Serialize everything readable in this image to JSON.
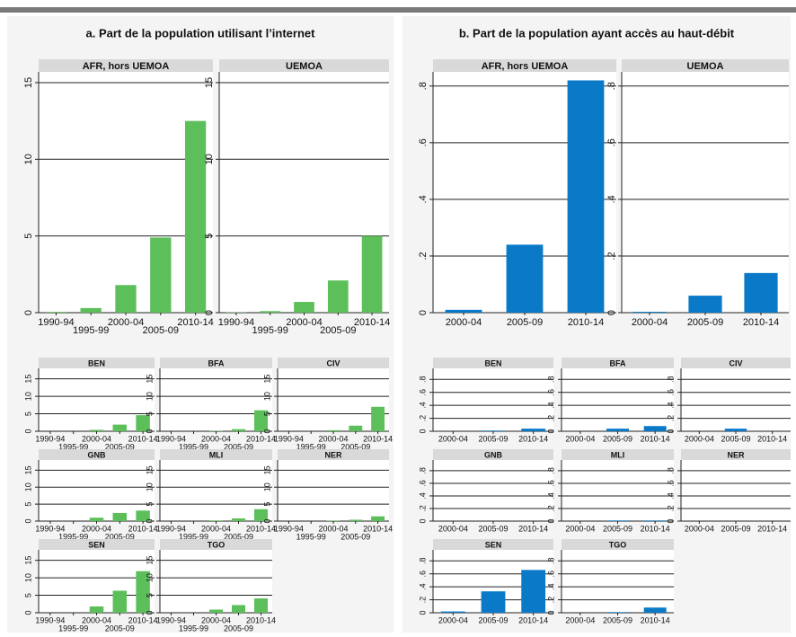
{
  "panels": [
    "a. Part de la population utilisant l’internet",
    "b. Part de la population ayant accès au haut-débit"
  ],
  "chart_data": [
    {
      "type": "bar",
      "title": "AFR, hors UEMOA",
      "categories": [
        "1990-94",
        "1995-99",
        "2000-04",
        "2005-09",
        "2010-14"
      ],
      "values": [
        0.05,
        0.3,
        1.8,
        4.9,
        12.5
      ],
      "color": "#5cbf5a",
      "ylim": [
        0,
        15.7
      ],
      "yticks": [
        0,
        5,
        10,
        15
      ],
      "grid": true
    },
    {
      "type": "bar",
      "title": "UEMOA",
      "categories": [
        "1990-94",
        "1995-99",
        "2000-04",
        "2005-09",
        "2010-14"
      ],
      "values": [
        0.02,
        0.1,
        0.7,
        2.1,
        5.0
      ],
      "color": "#5cbf5a",
      "ylim": [
        0,
        15.7
      ],
      "yticks": [
        0,
        5,
        10,
        15
      ],
      "grid": true
    },
    {
      "type": "bar",
      "title": "BEN",
      "categories": [
        "1990-94",
        "1995-99",
        "2000-04",
        "2005-09",
        "2010-14"
      ],
      "values": [
        0,
        0,
        0.4,
        1.9,
        4.6
      ],
      "color": "#5cbf5a",
      "ylim": [
        0,
        18
      ],
      "yticks": [
        0,
        5,
        10,
        15
      ],
      "grid": true
    },
    {
      "type": "bar",
      "title": "BFA",
      "categories": [
        "1990-94",
        "1995-99",
        "2000-04",
        "2005-09",
        "2010-14"
      ],
      "values": [
        0,
        0,
        0.1,
        0.6,
        6.0
      ],
      "color": "#5cbf5a",
      "ylim": [
        0,
        18
      ],
      "yticks": [
        0,
        5,
        10,
        15
      ],
      "grid": true
    },
    {
      "type": "bar",
      "title": "CIV",
      "categories": [
        "1990-94",
        "1995-99",
        "2000-04",
        "2005-09",
        "2010-14"
      ],
      "values": [
        0,
        0,
        0.3,
        1.6,
        7.0
      ],
      "color": "#5cbf5a",
      "ylim": [
        0,
        18
      ],
      "yticks": [
        0,
        5,
        10,
        15
      ],
      "grid": true
    },
    {
      "type": "bar",
      "title": "GNB",
      "categories": [
        "1990-94",
        "1995-99",
        "2000-04",
        "2005-09",
        "2010-14"
      ],
      "values": [
        0,
        0,
        1.0,
        2.4,
        3.1
      ],
      "color": "#5cbf5a",
      "ylim": [
        0,
        18
      ],
      "yticks": [
        0,
        5,
        10,
        15
      ],
      "grid": true
    },
    {
      "type": "bar",
      "title": "MLI",
      "categories": [
        "1990-94",
        "1995-99",
        "2000-04",
        "2005-09",
        "2010-14"
      ],
      "values": [
        0,
        0,
        0.2,
        0.8,
        3.5
      ],
      "color": "#5cbf5a",
      "ylim": [
        0,
        18
      ],
      "yticks": [
        0,
        5,
        10,
        15
      ],
      "grid": true
    },
    {
      "type": "bar",
      "title": "NER",
      "categories": [
        "1990-94",
        "1995-99",
        "2000-04",
        "2005-09",
        "2010-14"
      ],
      "values": [
        0,
        0,
        0.1,
        0.4,
        1.4
      ],
      "color": "#5cbf5a",
      "ylim": [
        0,
        18
      ],
      "yticks": [
        0,
        5,
        10,
        15
      ],
      "grid": true
    },
    {
      "type": "bar",
      "title": "SEN",
      "categories": [
        "1990-94",
        "1995-99",
        "2000-04",
        "2005-09",
        "2010-14"
      ],
      "values": [
        0,
        0,
        1.8,
        6.3,
        11.9
      ],
      "color": "#5cbf5a",
      "ylim": [
        0,
        18
      ],
      "yticks": [
        0,
        5,
        10,
        15
      ],
      "grid": true
    },
    {
      "type": "bar",
      "title": "TGO",
      "categories": [
        "1990-94",
        "1995-99",
        "2000-04",
        "2005-09",
        "2010-14"
      ],
      "values": [
        0,
        0,
        0.9,
        2.2,
        4.1
      ],
      "color": "#5cbf5a",
      "ylim": [
        0,
        18
      ],
      "yticks": [
        0,
        5,
        10,
        15
      ],
      "grid": true
    },
    {
      "type": "bar",
      "title": "AFR, hors UEMOA",
      "categories": [
        "2000-04",
        "2005-09",
        "2010-14"
      ],
      "values": [
        0.01,
        0.24,
        0.82
      ],
      "color": "#0a79c8",
      "ylim": [
        0,
        0.85
      ],
      "yticks": [
        0,
        {
          "value": 0.2,
          "label": ".2"
        },
        {
          "value": 0.4,
          "label": ".4"
        },
        {
          "value": 0.6,
          "label": ".6"
        },
        {
          "value": 0.8,
          "label": ".8"
        }
      ],
      "grid": true
    },
    {
      "type": "bar",
      "title": "UEMOA",
      "categories": [
        "2000-04",
        "2005-09",
        "2010-14"
      ],
      "values": [
        0.003,
        0.06,
        0.14
      ],
      "color": "#0a79c8",
      "ylim": [
        0,
        0.85
      ],
      "yticks": [
        0,
        {
          "value": 0.2,
          "label": ".2"
        },
        {
          "value": 0.4,
          "label": ".4"
        },
        {
          "value": 0.6,
          "label": ".6"
        },
        {
          "value": 0.8,
          "label": ".8"
        }
      ],
      "grid": true
    },
    {
      "type": "bar",
      "title": "BEN",
      "categories": [
        "2000-04",
        "2005-09",
        "2010-14"
      ],
      "values": [
        0,
        0.01,
        0.04
      ],
      "color": "#0a79c8",
      "ylim": [
        0,
        0.97
      ],
      "yticks": [
        0,
        {
          "value": 0.2,
          "label": ".2"
        },
        {
          "value": 0.4,
          "label": ".4"
        },
        {
          "value": 0.6,
          "label": ".6"
        },
        {
          "value": 0.8,
          "label": ".8"
        }
      ],
      "grid": true
    },
    {
      "type": "bar",
      "title": "BFA",
      "categories": [
        "2000-04",
        "2005-09",
        "2010-14"
      ],
      "values": [
        0,
        0.04,
        0.08
      ],
      "color": "#0a79c8",
      "ylim": [
        0,
        0.97
      ],
      "yticks": [
        0,
        {
          "value": 0.2,
          "label": ".2"
        },
        {
          "value": 0.4,
          "label": ".4"
        },
        {
          "value": 0.6,
          "label": ".6"
        },
        {
          "value": 0.8,
          "label": ".8"
        }
      ],
      "grid": true
    },
    {
      "type": "bar",
      "title": "CIV",
      "categories": [
        "2000-04",
        "2005-09",
        "2010-14"
      ],
      "values": [
        0,
        0.04,
        0
      ],
      "color": "#0a79c8",
      "ylim": [
        0,
        0.97
      ],
      "yticks": [
        0,
        {
          "value": 0.2,
          "label": ".2"
        },
        {
          "value": 0.4,
          "label": ".4"
        },
        {
          "value": 0.6,
          "label": ".6"
        },
        {
          "value": 0.8,
          "label": ".8"
        }
      ],
      "grid": true
    },
    {
      "type": "bar",
      "title": "GNB",
      "categories": [
        "2000-04",
        "2005-09",
        "2010-14"
      ],
      "values": [
        0,
        0,
        0
      ],
      "color": "#0a79c8",
      "ylim": [
        0,
        0.97
      ],
      "yticks": [
        0,
        {
          "value": 0.2,
          "label": ".2"
        },
        {
          "value": 0.4,
          "label": ".4"
        },
        {
          "value": 0.6,
          "label": ".6"
        },
        {
          "value": 0.8,
          "label": ".8"
        }
      ],
      "grid": true
    },
    {
      "type": "bar",
      "title": "MLI",
      "categories": [
        "2000-04",
        "2005-09",
        "2010-14"
      ],
      "values": [
        0,
        0.01,
        0.01
      ],
      "color": "#0a79c8",
      "ylim": [
        0,
        0.97
      ],
      "yticks": [
        0,
        {
          "value": 0.2,
          "label": ".2"
        },
        {
          "value": 0.4,
          "label": ".4"
        },
        {
          "value": 0.6,
          "label": ".6"
        },
        {
          "value": 0.8,
          "label": ".8"
        }
      ],
      "grid": true
    },
    {
      "type": "bar",
      "title": "NER",
      "categories": [
        "2000-04",
        "2005-09",
        "2010-14"
      ],
      "values": [
        0,
        0,
        0
      ],
      "color": "#0a79c8",
      "ylim": [
        0,
        0.97
      ],
      "yticks": [
        0,
        {
          "value": 0.2,
          "label": ".2"
        },
        {
          "value": 0.4,
          "label": ".4"
        },
        {
          "value": 0.6,
          "label": ".6"
        },
        {
          "value": 0.8,
          "label": ".8"
        }
      ],
      "grid": true
    },
    {
      "type": "bar",
      "title": "SEN",
      "categories": [
        "2000-04",
        "2005-09",
        "2010-14"
      ],
      "values": [
        0.02,
        0.33,
        0.66
      ],
      "color": "#0a79c8",
      "ylim": [
        0,
        0.97
      ],
      "yticks": [
        0,
        {
          "value": 0.2,
          "label": ".2"
        },
        {
          "value": 0.4,
          "label": ".4"
        },
        {
          "value": 0.6,
          "label": ".6"
        },
        {
          "value": 0.8,
          "label": ".8"
        }
      ],
      "grid": true
    },
    {
      "type": "bar",
      "title": "TGO",
      "categories": [
        "2000-04",
        "2005-09",
        "2010-14"
      ],
      "values": [
        0,
        0.01,
        0.08
      ],
      "color": "#0a79c8",
      "ylim": [
        0,
        0.97
      ],
      "yticks": [
        0,
        {
          "value": 0.2,
          "label": ".2"
        },
        {
          "value": 0.4,
          "label": ".4"
        },
        {
          "value": 0.6,
          "label": ".6"
        },
        {
          "value": 0.8,
          "label": ".8"
        }
      ],
      "grid": true
    }
  ]
}
